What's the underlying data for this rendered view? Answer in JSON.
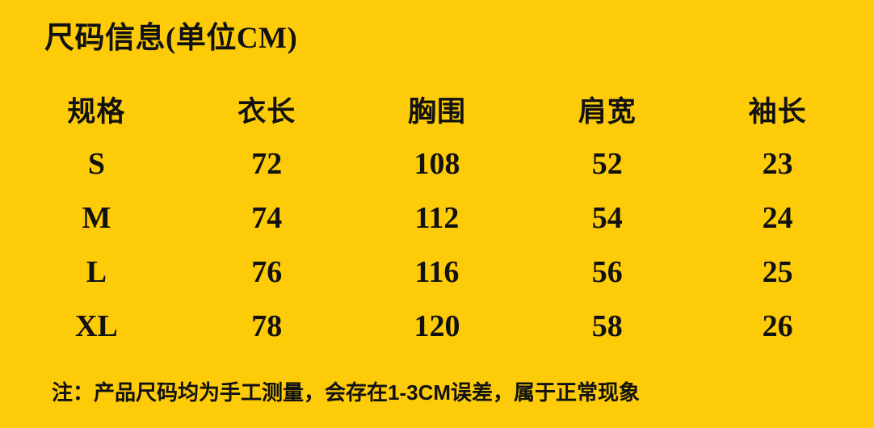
{
  "title": "尺码信息(单位CM)",
  "table": {
    "headers": [
      "规格",
      "衣长",
      "胸围",
      "肩宽",
      "袖长"
    ],
    "rows": [
      [
        "S",
        "72",
        "108",
        "52",
        "23"
      ],
      [
        "M",
        "74",
        "112",
        "54",
        "24"
      ],
      [
        "L",
        "76",
        "116",
        "56",
        "25"
      ],
      [
        "XL",
        "78",
        "120",
        "58",
        "26"
      ]
    ]
  },
  "note": "注：产品尺码均为手工测量，会存在1-3CM误差，属于正常现象",
  "colors": {
    "background": "#FDCB08",
    "text": "#111111"
  }
}
